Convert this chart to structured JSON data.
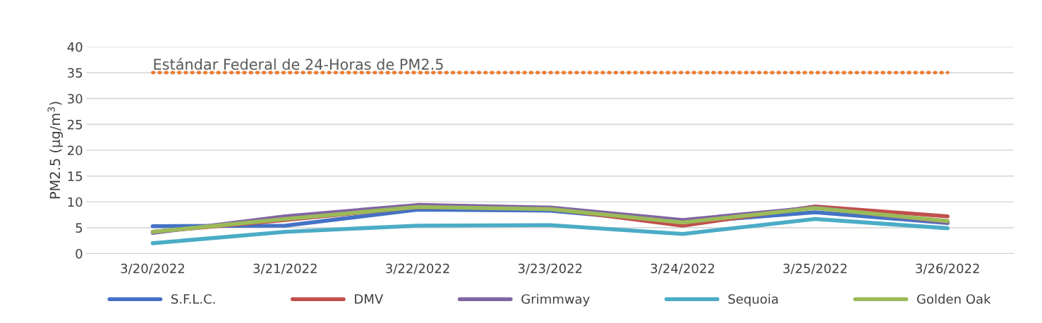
{
  "chart_data": {
    "type": "line",
    "ylabel": "PM2.5 (µg/m$^{3}$)",
    "categories": [
      "3/20/2022",
      "3/21/2022",
      "3/22/2022",
      "3/23/2022",
      "3/24/2022",
      "3/25/2022",
      "3/26/2022"
    ],
    "series": [
      {
        "name": "S.F.L.C.",
        "color": "#4472c4",
        "values": [
          5.3,
          5.4,
          8.5,
          8.3,
          6.0,
          8.0,
          5.9
        ]
      },
      {
        "name": "DMV",
        "color": "#c0504d",
        "values": [
          4.2,
          6.5,
          9.0,
          8.7,
          5.4,
          9.1,
          7.2
        ]
      },
      {
        "name": "Grimmway",
        "color": "#8064a2",
        "values": [
          4.0,
          7.2,
          9.4,
          8.9,
          6.5,
          8.9,
          6.0
        ]
      },
      {
        "name": "Sequoia",
        "color": "#4bacc6",
        "values": [
          2.0,
          4.2,
          5.4,
          5.5,
          3.8,
          6.7,
          4.9
        ]
      },
      {
        "name": "Golden Oak",
        "color": "#9bbb59",
        "values": [
          4.2,
          6.7,
          9.0,
          8.6,
          6.0,
          8.8,
          6.3
        ]
      },
      {
        "name": "Estándar Federal de 24-Horas de PM2.5",
        "color": "#ed7d31",
        "line_style": "dotted",
        "values": [
          35,
          35,
          35,
          35,
          35,
          35,
          35
        ]
      }
    ],
    "ylim": [
      0,
      40
    ],
    "yticks": [
      0,
      5,
      10,
      15,
      20,
      25,
      30,
      35,
      40
    ],
    "grid": "y",
    "legend": "bottom",
    "marker": "none"
  }
}
